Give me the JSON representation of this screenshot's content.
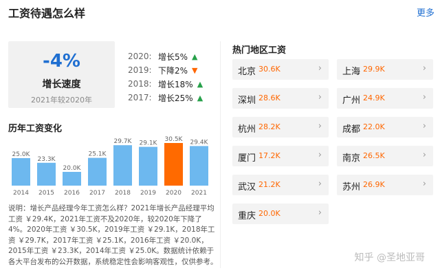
{
  "header": {
    "title": "工资待遇怎么样",
    "more": "更多"
  },
  "speed": {
    "value": "-4%",
    "label": "增长速度",
    "sub": "2021年较2020年"
  },
  "growth": [
    {
      "year": "2020:",
      "text": "增长5%",
      "dir": "up"
    },
    {
      "year": "2019:",
      "text": "下降2%",
      "dir": "down"
    },
    {
      "year": "2018:",
      "text": "增长18%",
      "dir": "up"
    },
    {
      "year": "2017:",
      "text": "增长25%",
      "dir": "up"
    }
  ],
  "history": {
    "title": "历年工资变化"
  },
  "chart_data": {
    "type": "bar",
    "categories": [
      "2014",
      "2015",
      "2016",
      "2017",
      "2018",
      "2019",
      "2020",
      "2021"
    ],
    "values": [
      25.0,
      23.3,
      20.0,
      25.1,
      29.7,
      29.1,
      30.5,
      29.4
    ],
    "labels": [
      "25.0K",
      "23.3K",
      "20.0K",
      "25.1K",
      "29.7K",
      "29.1K",
      "30.5K",
      "29.4K"
    ],
    "highlight_index": 6,
    "colors": {
      "bar": "#6db8ef",
      "highlight": "#ff6a00",
      "label": "#666666"
    },
    "title": "历年工资变化"
  },
  "note": "说明：增长产品经理今年工资怎么样？2021年增长产品经理平均工资 ￥29.4K，2021年工资不及2020年，较2020年下降了4%。2020年工资 ￥30.5K，2019年工资 ￥29.1K，2018年工资 ￥29.7K，2017年工资 ￥25.1K，2016年工资 ￥20.0K，2015年工资 ￥23.3K，2014年工资 ￥25.0K。数据统计依赖于各大平台发布的公开数据，系统稳定性会影响客观性，仅供参考。",
  "hot": {
    "title": "热门地区工资",
    "cities": [
      {
        "name": "北京",
        "salary": "30.6K"
      },
      {
        "name": "上海",
        "salary": "29.9K"
      },
      {
        "name": "深圳",
        "salary": "28.6K"
      },
      {
        "name": "广州",
        "salary": "24.9K"
      },
      {
        "name": "杭州",
        "salary": "28.2K"
      },
      {
        "name": "成都",
        "salary": "22.0K"
      },
      {
        "name": "厦门",
        "salary": "17.2K"
      },
      {
        "name": "南京",
        "salary": "26.5K"
      },
      {
        "name": "武汉",
        "salary": "21.2K"
      },
      {
        "name": "苏州",
        "salary": "26.9K"
      },
      {
        "name": "重庆",
        "salary": "20.0K"
      }
    ]
  },
  "watermark": "知乎 @圣地亚哥",
  "icons": {
    "up": "arrow-up-icon",
    "down": "arrow-down-icon",
    "chevron": "chevron-right-icon"
  }
}
